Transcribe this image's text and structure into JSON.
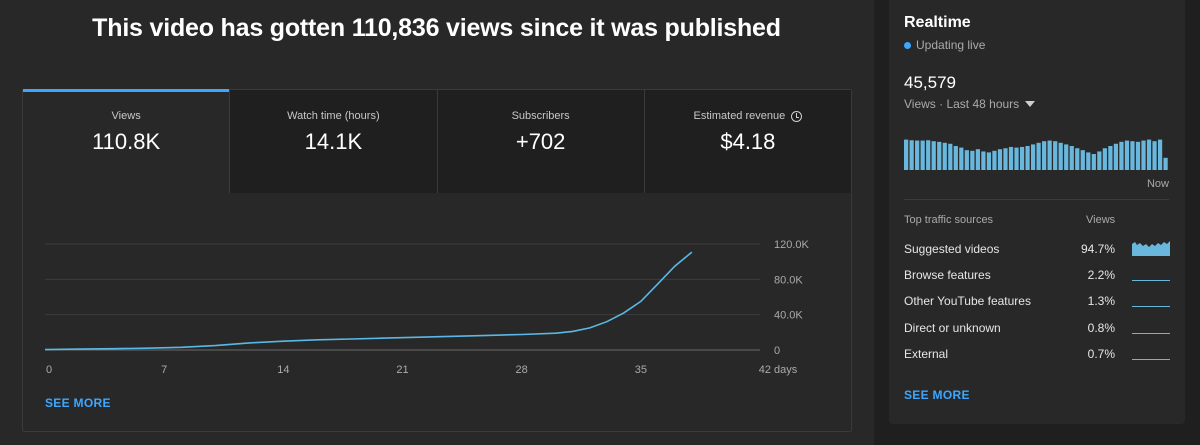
{
  "headline": "This video has gotten 110,836 views since it was published",
  "tabs": [
    {
      "label": "Views",
      "value": "110.8K"
    },
    {
      "label": "Watch time (hours)",
      "value": "14.1K"
    },
    {
      "label": "Subscribers",
      "value": "+702"
    },
    {
      "label": "Estimated revenue",
      "value": "$4.18"
    }
  ],
  "see_more": "SEE MORE",
  "realtime": {
    "title": "Realtime",
    "status": "Updating live",
    "count": "45,579",
    "period": "Views · Last 48 hours",
    "now_label": "Now",
    "bar_values": [
      95,
      93,
      92,
      92,
      93,
      90,
      88,
      85,
      82,
      75,
      70,
      62,
      60,
      65,
      58,
      55,
      60,
      65,
      68,
      72,
      70,
      72,
      75,
      80,
      85,
      90,
      92,
      90,
      85,
      80,
      75,
      68,
      62,
      55,
      50,
      58,
      68,
      75,
      82,
      88,
      92,
      90,
      88,
      92,
      95,
      90,
      95,
      38
    ],
    "traffic_header": {
      "source": "Top traffic sources",
      "views": "Views"
    },
    "traffic_sources": [
      {
        "name": "Suggested videos",
        "pct": "94.7%"
      },
      {
        "name": "Browse features",
        "pct": "2.2%"
      },
      {
        "name": "Other YouTube features",
        "pct": "1.3%"
      },
      {
        "name": "Direct or unknown",
        "pct": "0.8%"
      },
      {
        "name": "External",
        "pct": "0.7%"
      }
    ],
    "see_more": "SEE MORE"
  },
  "colors": {
    "accent": "#3ea6ff",
    "line": "#5ab8e6",
    "bars": "#69b7dc"
  },
  "chart_data": {
    "type": "line",
    "x": [
      0,
      2,
      4,
      6,
      8,
      10,
      12,
      14,
      16,
      18,
      20,
      22,
      24,
      26,
      28,
      30,
      31,
      32,
      33,
      34,
      35,
      36,
      37,
      38
    ],
    "values": [
      500,
      1000,
      1500,
      2000,
      3000,
      5000,
      8000,
      10000,
      11500,
      12500,
      13500,
      14500,
      15500,
      16500,
      17500,
      19000,
      21000,
      25000,
      32000,
      42000,
      55000,
      75000,
      95000,
      110836
    ],
    "x_ticks": [
      "0",
      "7",
      "14",
      "21",
      "28",
      "35",
      "42 days"
    ],
    "x_tick_values": [
      0,
      7,
      14,
      21,
      28,
      35,
      42
    ],
    "y_ticks": [
      "0",
      "40.0K",
      "80.0K",
      "120.0K"
    ],
    "y_tick_values": [
      0,
      40000,
      80000,
      120000
    ],
    "xlim": [
      0,
      42
    ],
    "ylim": [
      0,
      120000
    ],
    "grid": true
  }
}
